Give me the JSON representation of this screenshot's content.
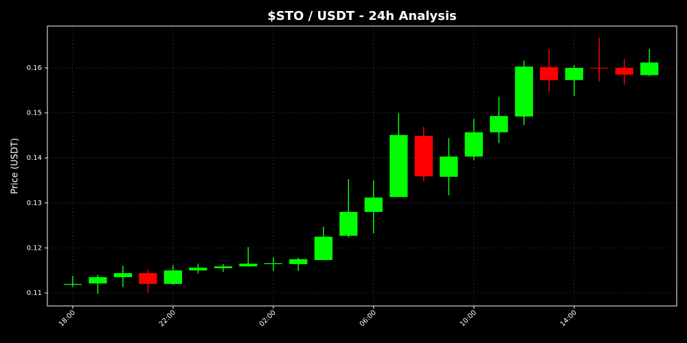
{
  "chart_data": {
    "type": "candlestick",
    "title": "$STO / USDT - 24h Analysis",
    "y_label": "Price (USDT)",
    "categories": [
      "18:00",
      null,
      null,
      null,
      "22:00",
      null,
      null,
      null,
      "02:00",
      null,
      null,
      null,
      "06:00",
      null,
      null,
      null,
      "10:00",
      null,
      null,
      null,
      "14:00",
      null,
      null,
      null
    ],
    "open": [
      0.1118,
      0.1121,
      0.1135,
      0.1144,
      0.112,
      0.115,
      0.1155,
      0.1159,
      0.1164,
      0.1164,
      0.1173,
      0.1227,
      0.128,
      0.1313,
      0.1449,
      0.1358,
      0.1403,
      0.1457,
      0.1492,
      0.1602,
      0.1573,
      0.16,
      0.16,
      0.1584
    ],
    "high": [
      0.1138,
      0.114,
      0.116,
      0.1152,
      0.1162,
      0.1165,
      0.1164,
      0.1202,
      0.1179,
      0.1178,
      0.1247,
      0.1353,
      0.135,
      0.1499,
      0.1469,
      0.1444,
      0.1487,
      0.1536,
      0.1616,
      0.1642,
      0.1606,
      0.1667,
      0.162,
      0.1642
    ],
    "low": [
      0.1113,
      0.1098,
      0.1113,
      0.11,
      0.1118,
      0.1143,
      0.1147,
      0.1158,
      0.1149,
      0.1149,
      0.1173,
      0.1223,
      0.1232,
      0.1313,
      0.1348,
      0.1317,
      0.1395,
      0.1433,
      0.1473,
      0.1546,
      0.1538,
      0.157,
      0.1563,
      0.1582
    ],
    "close": [
      0.112,
      0.1135,
      0.1144,
      0.112,
      0.115,
      0.1156,
      0.1159,
      0.1165,
      0.1166,
      0.1175,
      0.1225,
      0.128,
      0.1312,
      0.1451,
      0.1359,
      0.1403,
      0.1457,
      0.1493,
      0.1603,
      0.1573,
      0.16,
      0.1599,
      0.1585,
      0.1612
    ],
    "up_color": "#00ff00",
    "down_color": "#ff0000",
    "ylim": [
      0.1071,
      0.1693
    ],
    "yticks": [
      0.11,
      0.12,
      0.13,
      0.14,
      0.15,
      0.16
    ],
    "grid": true
  }
}
